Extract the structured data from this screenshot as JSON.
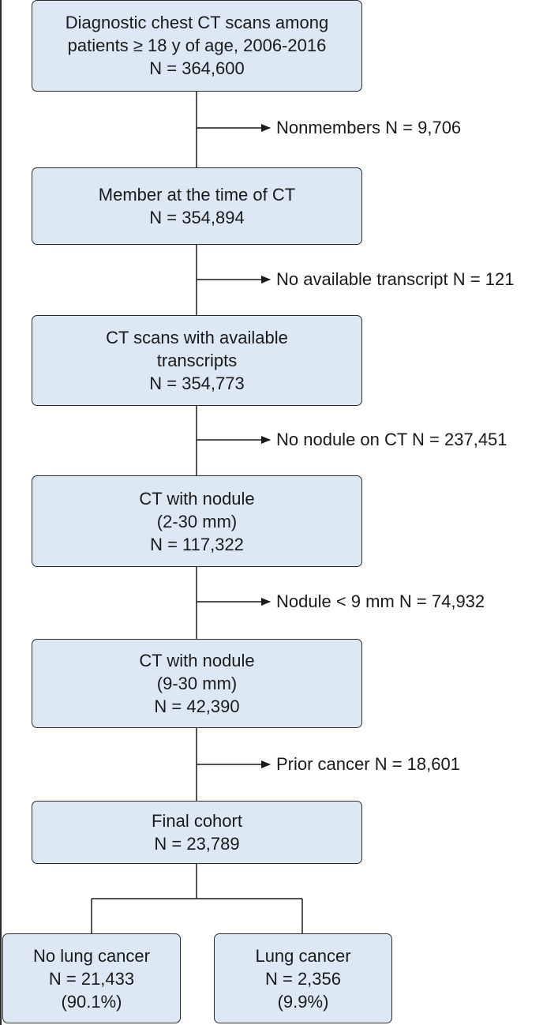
{
  "boxes": {
    "initial": {
      "line1": "Diagnostic chest CT scans among",
      "line2": "patients ≥ 18 y of age, 2006-2016",
      "count": "N = 364,600"
    },
    "member": {
      "line1": "Member at the time of CT",
      "count": "N = 354,894"
    },
    "transcripts": {
      "line1": "CT scans with available",
      "line2": "transcripts",
      "count": "N = 354,773"
    },
    "nodule_2_30": {
      "line1": "CT with nodule",
      "line2": "(2-30 mm)",
      "count": "N = 117,322"
    },
    "nodule_9_30": {
      "line1": "CT with nodule",
      "line2": "(9-30 mm)",
      "count": "N = 42,390"
    },
    "final": {
      "line1": "Final cohort",
      "count": "N = 23,789"
    },
    "no_lung_cancer": {
      "line1": "No lung cancer",
      "count": "N = 21,433",
      "pct": "(90.1%)"
    },
    "lung_cancer": {
      "line1": "Lung cancer",
      "count": "N = 2,356",
      "pct": "(9.9%)"
    }
  },
  "exclusions": {
    "nonmembers": "Nonmembers N = 9,706",
    "no_transcript": "No available transcript N = 121",
    "no_nodule": "No nodule on CT N = 237,451",
    "small_nodule": "Nodule < 9 mm N = 74,932",
    "prior_cancer": "Prior cancer N = 18,601"
  },
  "colors": {
    "box_fill": "#dce9f5",
    "stroke": "#2b2b2b"
  }
}
